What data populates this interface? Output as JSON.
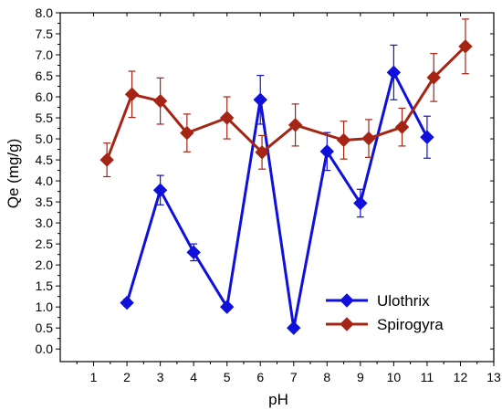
{
  "chart_data": {
    "type": "line",
    "xlabel": "pH",
    "ylabel": "Qe (mg/g)",
    "xlim": [
      0,
      13
    ],
    "ylim": [
      -0.3,
      8.0
    ],
    "x_ticks": [
      1,
      2,
      3,
      4,
      5,
      6,
      7,
      8,
      9,
      10,
      11,
      12,
      13
    ],
    "x_tick_labels": [
      "1",
      "2",
      "3",
      "4",
      "5",
      "6",
      "7",
      "8",
      "9",
      "10",
      "11",
      "12",
      "13"
    ],
    "y_ticks": [
      0,
      0.5,
      1,
      1.5,
      2,
      2.5,
      3,
      3.5,
      4,
      4.5,
      5,
      5.5,
      6,
      6.5,
      7,
      7.5,
      8
    ],
    "y_tick_labels": [
      "0.0",
      "0.5",
      "1.0",
      "1.5",
      "2.0",
      "2.5",
      "3.0",
      "3.5",
      "4.0",
      "4.5",
      "5.0",
      "5.5",
      "6.0",
      "6.5",
      "7.0",
      "7.5",
      "8.0"
    ],
    "grid": false,
    "legend_position": "bottom-right",
    "series": [
      {
        "name": "Ulothrix",
        "color": "#1010dd",
        "marker": "diamond",
        "x": [
          2,
          3,
          4,
          5,
          6,
          7,
          8,
          9,
          10,
          11
        ],
        "y": [
          1.1,
          3.78,
          2.3,
          1.0,
          5.93,
          0.5,
          4.7,
          3.47,
          6.58,
          5.04
        ],
        "err": [
          0.08,
          0.35,
          0.2,
          0.0,
          0.58,
          0.0,
          0.45,
          0.33,
          0.65,
          0.5
        ]
      },
      {
        "name": "Spirogyra",
        "color": "#a52515",
        "marker": "diamond",
        "x": [
          1.4,
          2.15,
          3.0,
          3.8,
          5.0,
          6.05,
          7.05,
          8.5,
          9.25,
          10.25,
          11.2,
          12.15
        ],
        "y": [
          4.5,
          6.06,
          5.9,
          5.14,
          5.5,
          4.68,
          5.33,
          4.97,
          5.01,
          5.28,
          6.46,
          7.2
        ],
        "err": [
          0.4,
          0.55,
          0.55,
          0.45,
          0.5,
          0.4,
          0.5,
          0.45,
          0.45,
          0.45,
          0.57,
          0.65
        ]
      }
    ]
  }
}
